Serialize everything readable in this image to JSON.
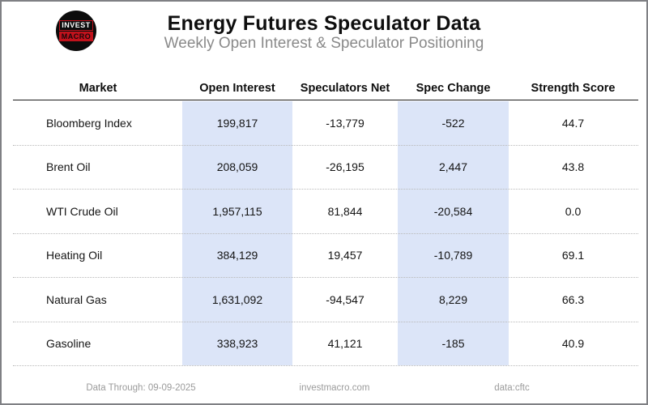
{
  "header": {
    "title": "Energy Futures Speculator Data",
    "subtitle": "Weekly Open Interest & Speculator Positioning",
    "logo": {
      "line1": "INVEST",
      "line2": "MACRO"
    }
  },
  "table": {
    "columns": {
      "market": "Market",
      "open_interest": "Open Interest",
      "spec_net": "Speculators Net",
      "spec_change": "Spec Change",
      "strength": "Strength Score"
    },
    "rows": [
      {
        "market": "Bloomberg Index",
        "open_interest": "199,817",
        "spec_net": "-13,779",
        "spec_change": "-522",
        "strength": "44.7"
      },
      {
        "market": "Brent Oil",
        "open_interest": "208,059",
        "spec_net": "-26,195",
        "spec_change": "2,447",
        "strength": "43.8"
      },
      {
        "market": "WTI Crude Oil",
        "open_interest": "1,957,115",
        "spec_net": "81,844",
        "spec_change": "-20,584",
        "strength": "0.0"
      },
      {
        "market": "Heating Oil",
        "open_interest": "384,129",
        "spec_net": "19,457",
        "spec_change": "-10,789",
        "strength": "69.1"
      },
      {
        "market": "Natural Gas",
        "open_interest": "1,631,092",
        "spec_net": "-94,547",
        "spec_change": "8,229",
        "strength": "66.3"
      },
      {
        "market": "Gasoline",
        "open_interest": "338,923",
        "spec_net": "41,121",
        "spec_change": "-185",
        "strength": "40.9"
      }
    ]
  },
  "footer": {
    "data_through": "Data Through: 09-09-2025",
    "website": "investmacro.com",
    "source": "data:cftc"
  },
  "colors": {
    "column_band": "#dce5f8",
    "brand_red": "#c1121c",
    "subtitle_gray": "#8a8a8a",
    "footer_gray": "#9b9b9b"
  },
  "chart_data": {
    "type": "table",
    "title": "Energy Futures Speculator Data",
    "subtitle": "Weekly Open Interest & Speculator Positioning",
    "columns": [
      "Market",
      "Open Interest",
      "Speculators Net",
      "Spec Change",
      "Strength Score"
    ],
    "rows": [
      [
        "Bloomberg Index",
        199817,
        -13779,
        -522,
        44.7
      ],
      [
        "Brent Oil",
        208059,
        -26195,
        2447,
        43.8
      ],
      [
        "WTI Crude Oil",
        1957115,
        81844,
        -20584,
        0.0
      ],
      [
        "Heating Oil",
        384129,
        19457,
        -10789,
        69.1
      ],
      [
        "Natural Gas",
        1631092,
        -94547,
        8229,
        66.3
      ],
      [
        "Gasoline",
        338923,
        41121,
        -185,
        40.9
      ]
    ],
    "highlighted_columns": [
      "Open Interest",
      "Spec Change"
    ],
    "footer": [
      "Data Through: 09-09-2025",
      "investmacro.com",
      "data:cftc"
    ]
  }
}
